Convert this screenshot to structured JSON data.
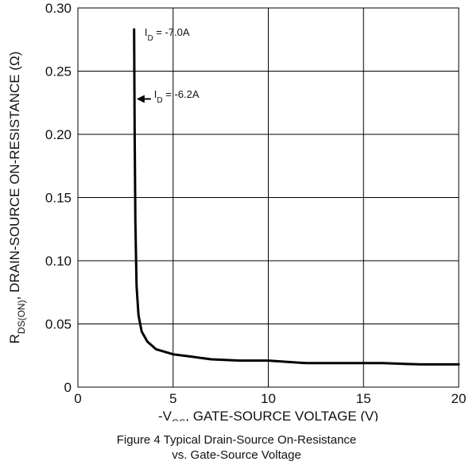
{
  "chart_data": {
    "type": "line",
    "title": "",
    "caption": [
      "Figure 4 Typical Drain-Source On-Resistance",
      "vs. Gate-Source Voltage"
    ],
    "xlabel": {
      "prefix": "-V",
      "sub": "GS",
      "suffix": ", GATE-SOURCE VOLTAGE (V)"
    },
    "ylabel": {
      "prefix": "R",
      "sub": "DS(ON)",
      "suffix": ", DRAIN-SOURCE ON-RESISTANCE (Ω)"
    },
    "xlim": [
      0,
      20
    ],
    "ylim": [
      0,
      0.3
    ],
    "xticks": [
      0,
      5,
      10,
      15,
      20
    ],
    "xtick_labels": [
      "0",
      "5",
      "10",
      "15",
      "20"
    ],
    "yticks": [
      0,
      0.05,
      0.1,
      0.15,
      0.2,
      0.25,
      0.3
    ],
    "ytick_labels": [
      "0",
      "0.05",
      "0.10",
      "0.15",
      "0.20",
      "0.25",
      "0.30"
    ],
    "grid": true,
    "line_color": "#000000",
    "series": [
      {
        "name": "",
        "x": [
          2.95,
          2.98,
          3.02,
          3.08,
          3.18,
          3.35,
          3.65,
          4.1,
          5,
          6,
          7,
          8.5,
          10,
          11,
          12,
          14,
          16,
          18,
          20
        ],
        "y": [
          0.283,
          0.2,
          0.13,
          0.08,
          0.057,
          0.044,
          0.036,
          0.03,
          0.026,
          0.024,
          0.022,
          0.021,
          0.021,
          0.02,
          0.019,
          0.019,
          0.019,
          0.018,
          0.018
        ]
      }
    ],
    "annotations": [
      {
        "prefix": "I",
        "sub": "D",
        "suffix": " = -7.0A",
        "x": 3.5,
        "y": 0.278,
        "arrow": false
      },
      {
        "prefix": "I",
        "sub": "D",
        "suffix": " = -6.2A",
        "x": 4.0,
        "y": 0.229,
        "arrow": true,
        "target_x": 3.0,
        "target_y": 0.228
      }
    ]
  }
}
